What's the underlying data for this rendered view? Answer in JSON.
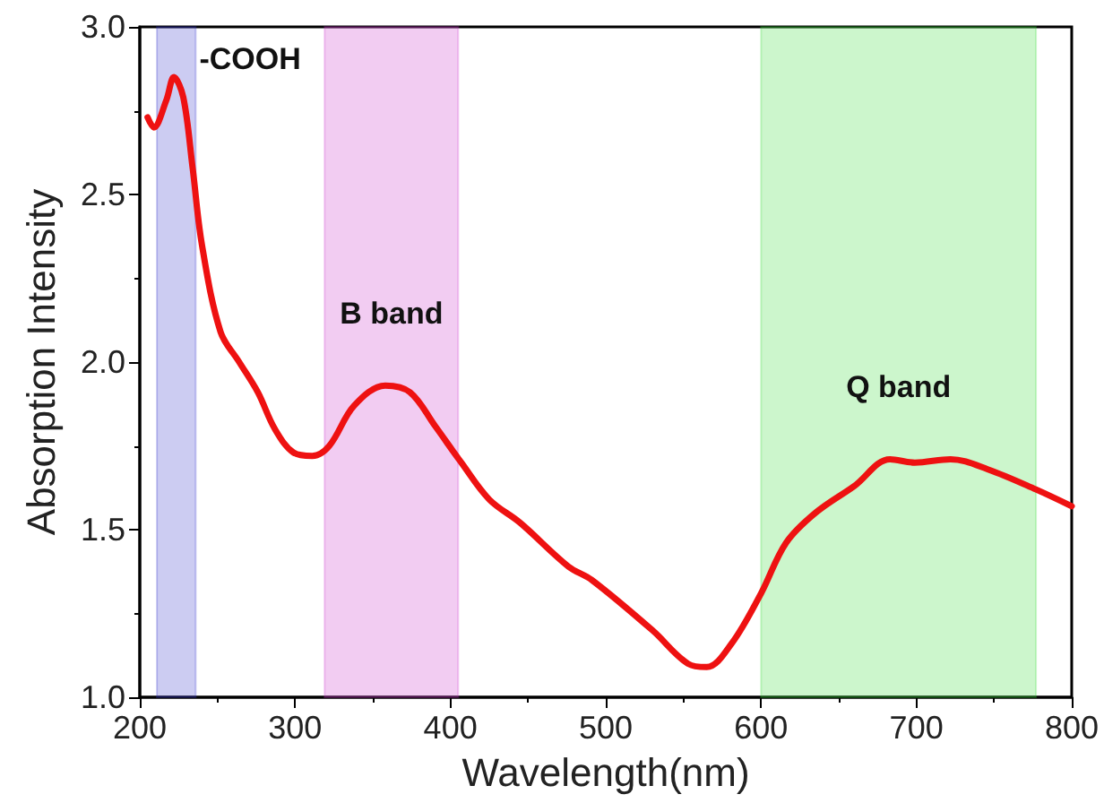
{
  "chart_data": {
    "type": "line",
    "xlabel": "Wavelength(nm)",
    "ylabel": "Absorption Intensity",
    "xlim": [
      200,
      800
    ],
    "xticks": [
      200,
      300,
      400,
      500,
      600,
      700,
      800
    ],
    "ylim": [
      1.0,
      3.0
    ],
    "yticks": [
      {
        "value": 1.0,
        "label": "1.0"
      },
      {
        "value": 1.5,
        "label": "1.5"
      },
      {
        "value": 2.0,
        "label": "2.0"
      },
      {
        "value": 2.5,
        "label": "2.5"
      },
      {
        "value": 3.0,
        "label": "3.0"
      }
    ],
    "grid": false,
    "marker": "none",
    "line_style": "solid",
    "series": [
      {
        "color": "#ee1111",
        "x": [
          205,
          209,
          217,
          222,
          228,
          234,
          240,
          252,
          264,
          276,
          287,
          299,
          311,
          322,
          338,
          358,
          374,
          390,
          407,
          425,
          445,
          476,
          491,
          530,
          553,
          565,
          581,
          600,
          616,
          635,
          660,
          683,
          699,
          722,
          746,
          777,
          800
        ],
        "values": [
          2.73,
          2.7,
          2.78,
          2.85,
          2.79,
          2.58,
          2.35,
          2.09,
          2.0,
          1.91,
          1.8,
          1.73,
          1.72,
          1.75,
          1.87,
          1.93,
          1.91,
          1.81,
          1.7,
          1.59,
          1.52,
          1.39,
          1.35,
          1.2,
          1.1,
          1.09,
          1.16,
          1.31,
          1.46,
          1.55,
          1.63,
          1.71,
          1.7,
          1.71,
          1.68,
          1.62,
          1.57
        ]
      }
    ],
    "bands": [
      {
        "axis": "x",
        "from": 211,
        "to": 236,
        "color": "#3333cc",
        "label": "-COOH"
      },
      {
        "axis": "x",
        "from": 319,
        "to": 405,
        "color": "#cc33cc",
        "label": "B band"
      },
      {
        "axis": "x",
        "from": 600,
        "to": 777,
        "color": "#33dd33",
        "label": "Q band"
      }
    ]
  }
}
